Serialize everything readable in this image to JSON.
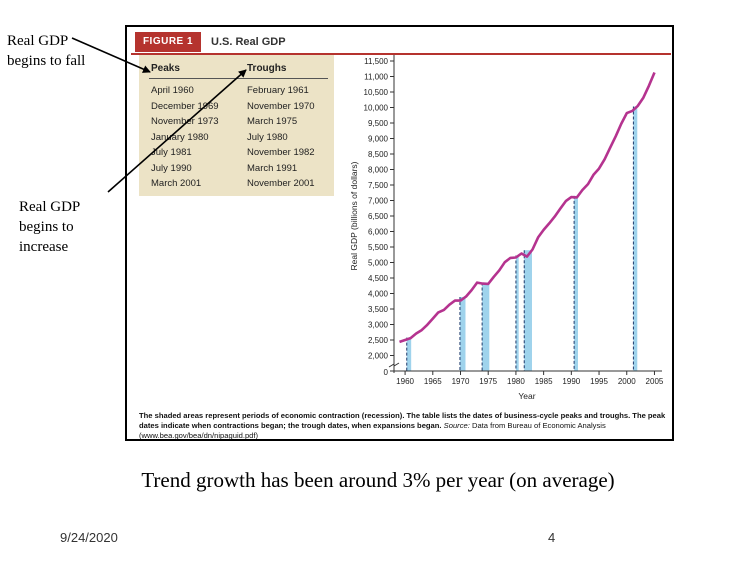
{
  "annotations": {
    "fall": "Real GDP begins to fall",
    "increase": "Real GDP begins to increase"
  },
  "figure": {
    "label": "FIGURE 1",
    "title": "U.S. Real GDP",
    "table": {
      "headers": {
        "peaks": "Peaks",
        "troughs": "Troughs"
      },
      "rows": [
        {
          "peak": "April 1960",
          "trough": "February 1961"
        },
        {
          "peak": "December 1969",
          "trough": "November 1970"
        },
        {
          "peak": "November 1973",
          "trough": "March 1975"
        },
        {
          "peak": "January 1980",
          "trough": "July 1980"
        },
        {
          "peak": "July 1981",
          "trough": "November 1982"
        },
        {
          "peak": "July 1990",
          "trough": "March 1991"
        },
        {
          "peak": "March 2001",
          "trough": "November 2001"
        }
      ]
    },
    "caption_bold": "The shaded areas represent periods of economic contraction (recession). The table lists the dates of business-cycle peaks and troughs. The peak dates indicate when contractions began; the trough dates, when expansions began.",
    "caption_source_label": "Source:",
    "caption_source": "Data from Bureau of Economic Analysis (www.bea.gov/bea/dn/nipaguid.pdf)"
  },
  "subtitle": "Trend growth has been around 3% per year (on average)",
  "footer": {
    "date": "9/24/2020",
    "page": "4"
  },
  "colors": {
    "line": "#b5338f",
    "recession": "#9fd3ec",
    "figure_accent": "#b5332e",
    "table_bg": "#ece3c6"
  },
  "chart_data": {
    "type": "line",
    "xlabel": "Year",
    "ylabel": "Real GDP (billions of dollars)",
    "xlim": [
      1958,
      2006
    ],
    "ylim": [
      1500,
      11500
    ],
    "x_ticks": [
      "1960",
      "1965",
      "1970",
      "1975",
      "1980",
      "1985",
      "1990",
      "1995",
      "2000",
      "2005"
    ],
    "y_ticks": [
      "2,000",
      "2,500",
      "3,000",
      "3,500",
      "4,000",
      "4,500",
      "5,000",
      "5,500",
      "6,000",
      "6,500",
      "7,000",
      "7,500",
      "8,000",
      "8,500",
      "9,000",
      "9,500",
      "10,000",
      "10,500",
      "11,000",
      "11,500"
    ],
    "y_axis_origin_label": "0",
    "series": [
      {
        "x": [
          1959,
          1960,
          1961,
          1962,
          1963,
          1964,
          1965,
          1966,
          1967,
          1968,
          1969,
          1970,
          1971,
          1972,
          1973,
          1974,
          1975,
          1976,
          1977,
          1978,
          1979,
          1980,
          1981,
          1982,
          1983,
          1984,
          1985,
          1986,
          1987,
          1988,
          1989,
          1990,
          1991,
          1992,
          1993,
          1994,
          1995,
          1996,
          1997,
          1998,
          1999,
          2000,
          2001,
          2002,
          2003,
          2004,
          2005
        ],
        "y": [
          2440,
          2500,
          2560,
          2710,
          2820,
          2990,
          3190,
          3390,
          3470,
          3640,
          3770,
          3770,
          3900,
          4110,
          4350,
          4320,
          4310,
          4540,
          4750,
          5010,
          5150,
          5160,
          5290,
          5190,
          5420,
          5810,
          6050,
          6260,
          6480,
          6740,
          6980,
          7110,
          7100,
          7340,
          7530,
          7830,
          8030,
          8330,
          8700,
          9070,
          9470,
          9820,
          9890,
          10050,
          10320,
          10700,
          11130
        ]
      }
    ],
    "recessions": [
      [
        1960.3,
        1961.1
      ],
      [
        1969.9,
        1970.9
      ],
      [
        1973.9,
        1975.2
      ],
      [
        1980.0,
        1980.5
      ],
      [
        1981.5,
        1982.9
      ],
      [
        1990.5,
        1991.2
      ],
      [
        2001.2,
        2001.9
      ]
    ]
  }
}
